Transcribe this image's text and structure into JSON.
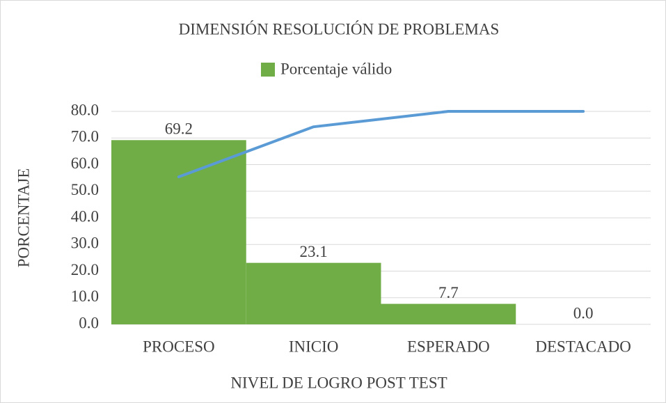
{
  "chart_data": {
    "type": "bar",
    "title": "DIMENSIÓN RESOLUCIÓN DE PROBLEMAS",
    "xlabel": "NIVEL DE LOGRO POST TEST",
    "ylabel": "PORCENTAJE",
    "categories": [
      "PROCESO",
      "INICIO",
      "ESPERADO",
      "DESTACADO"
    ],
    "series": [
      {
        "name": "Porcentaje válido",
        "type": "bar",
        "color": "#70ad47",
        "values": [
          69.2,
          23.1,
          7.7,
          0
        ],
        "value_labels": [
          "69.2",
          "23.1",
          "7.7",
          "0.0"
        ]
      },
      {
        "type": "line",
        "color": "#5b9bd5",
        "values": [
          55.4,
          74.2,
          80,
          80
        ]
      }
    ],
    "ylim": [
      0,
      80
    ],
    "yticks": [
      {
        "value": 0,
        "label": "0.0"
      },
      {
        "value": 10,
        "label": "10.0"
      },
      {
        "value": 20,
        "label": "20.0"
      },
      {
        "value": 30,
        "label": "30.0"
      },
      {
        "value": 40,
        "label": "40.0"
      },
      {
        "value": 50,
        "label": "50.0"
      },
      {
        "value": 60,
        "label": "60.0"
      },
      {
        "value": 70,
        "label": "70.0"
      },
      {
        "value": 80,
        "label": "80.0"
      }
    ],
    "grid": true,
    "legend": "top"
  }
}
